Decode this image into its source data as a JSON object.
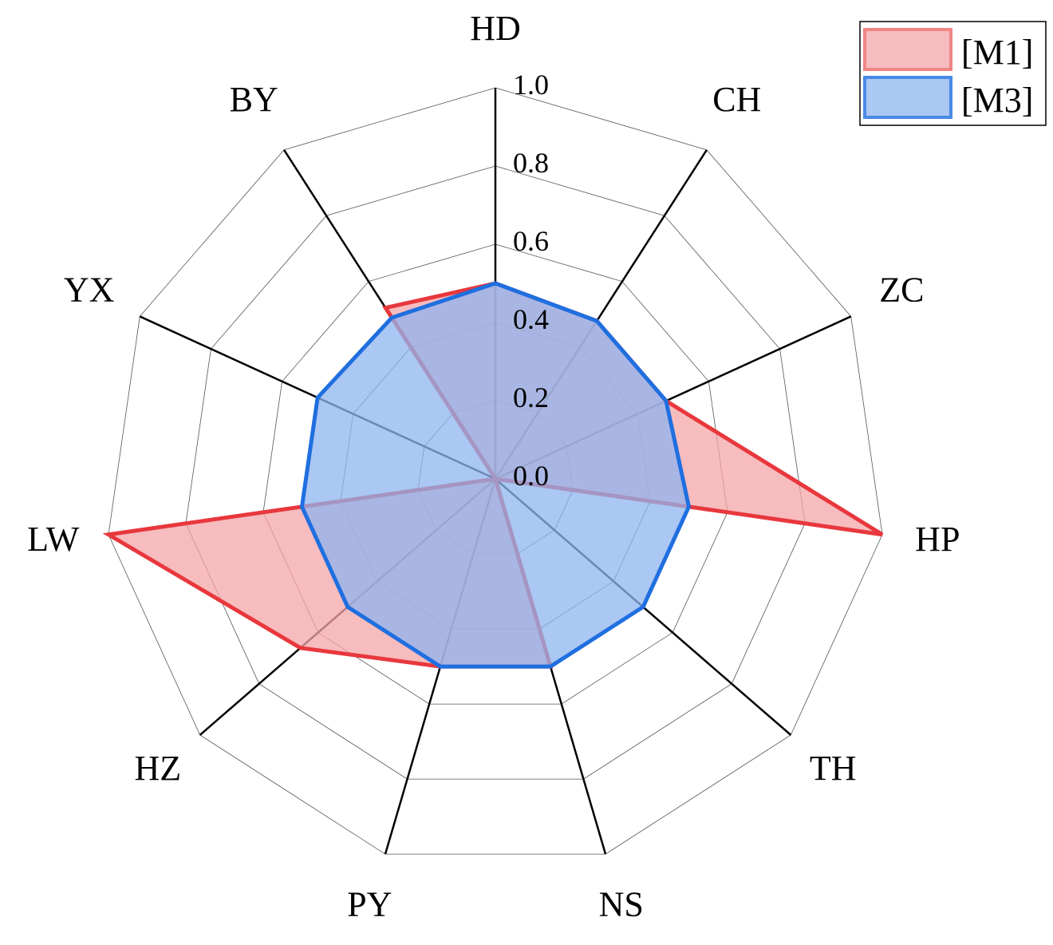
{
  "chart_data": {
    "type": "radar",
    "axes": [
      "HD",
      "CH",
      "ZC",
      "HP",
      "TH",
      "NS",
      "PY",
      "HZ",
      "LW",
      "YX",
      "BY"
    ],
    "radial_ticks": [
      "0.0",
      "0.2",
      "0.4",
      "0.6",
      "0.8",
      "1.0"
    ],
    "rlim": [
      0,
      1.0
    ],
    "grid": true,
    "legend_position": "top-right",
    "series": [
      {
        "name": "[M1]",
        "values": [
          0.5,
          0.48,
          0.48,
          1.0,
          0.0,
          0.5,
          0.5,
          0.66,
          1.0,
          0.0,
          0.52
        ],
        "color": "#e8383d",
        "fill": "#f4a6a8"
      },
      {
        "name": "[M3]",
        "values": [
          0.5,
          0.48,
          0.48,
          0.5,
          0.5,
          0.5,
          0.5,
          0.5,
          0.5,
          0.5,
          0.49
        ],
        "color": "#1f6fe0",
        "fill": "#8fb4ef"
      }
    ]
  }
}
